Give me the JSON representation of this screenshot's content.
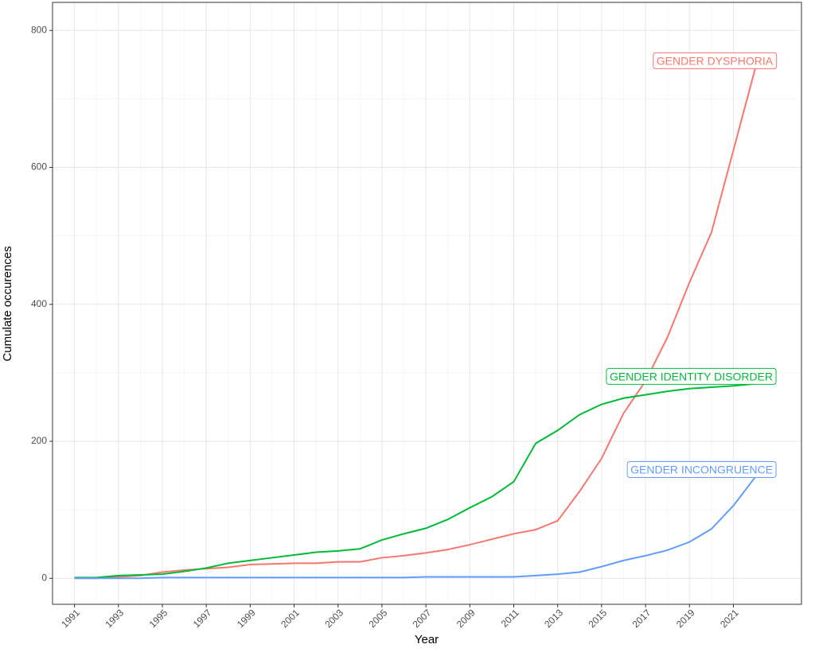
{
  "chart_data": {
    "type": "line",
    "x_label": "Year",
    "y_label": "Cumulate occurences",
    "x": [
      1991,
      1992,
      1993,
      1994,
      1995,
      1996,
      1997,
      1998,
      1999,
      2000,
      2001,
      2002,
      2003,
      2004,
      2005,
      2006,
      2007,
      2008,
      2009,
      2010,
      2011,
      2012,
      2013,
      2014,
      2015,
      2016,
      2017,
      2018,
      2019,
      2020,
      2021,
      2022
    ],
    "series": [
      {
        "name": "GENDER DYSPHORIA",
        "color": "#F8766D",
        "values": [
          0,
          0,
          2,
          4,
          9,
          12,
          14,
          16,
          20,
          21,
          22,
          22,
          24,
          24,
          30,
          33,
          37,
          42,
          49,
          57,
          65,
          71,
          84,
          127,
          175,
          241,
          288,
          352,
          432,
          505,
          625,
          745
        ]
      },
      {
        "name": "GENDER IDENTITY DISORDER",
        "color": "#00BA38",
        "values": [
          1,
          1,
          4,
          5,
          6,
          10,
          15,
          22,
          26,
          30,
          34,
          38,
          40,
          43,
          56,
          65,
          73,
          86,
          103,
          119,
          141,
          197,
          216,
          239,
          254,
          263,
          268,
          273,
          277,
          279,
          281,
          284
        ]
      },
      {
        "name": "GENDER INCONGRUENCE",
        "color": "#619CFF",
        "values": [
          0,
          0,
          0,
          0,
          1,
          1,
          1,
          1,
          1,
          1,
          1,
          1,
          1,
          1,
          1,
          1,
          2,
          2,
          2,
          2,
          2,
          4,
          6,
          9,
          17,
          26,
          33,
          41,
          53,
          72,
          106,
          148
        ]
      }
    ],
    "xlim": [
      1990,
      2024.1
    ],
    "ylim": [
      -38,
      841
    ],
    "xticks": [
      1991,
      1993,
      1995,
      1997,
      1999,
      2001,
      2003,
      2005,
      2007,
      2009,
      2011,
      2013,
      2015,
      2017,
      2019,
      2021
    ],
    "yticks": [
      0,
      200,
      400,
      600,
      800
    ],
    "grid": true
  }
}
